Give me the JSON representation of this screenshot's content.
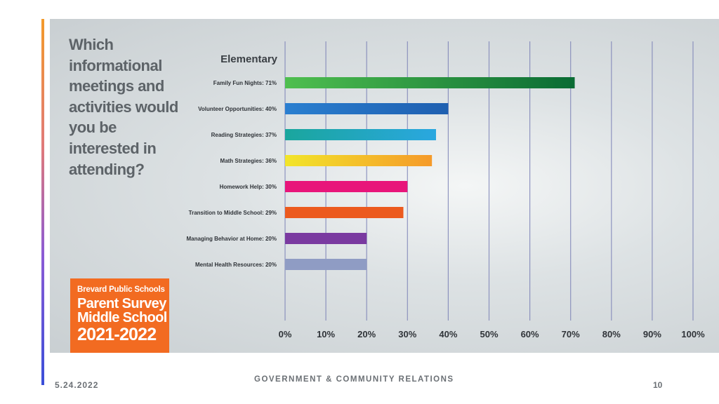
{
  "slide": {
    "question": "Which informational meetings and activities would you be interested in attending?",
    "badge": {
      "line1": "Brevard Public Schools",
      "line2": "Parent Survey",
      "line3": "Middle School",
      "year": "2021-2022"
    },
    "footer": {
      "date": "5.24.2022",
      "center": "GOVERNMENT & COMMUNITY RELATIONS",
      "page": "10"
    }
  },
  "chart_data": {
    "type": "bar",
    "orientation": "horizontal",
    "title": "Elementary",
    "categories": [
      "Family Fun Nights: 71%",
      "Volunteer Opportunities: 40%",
      "Reading Strategies: 37%",
      "Math Strategies: 36%",
      "Homework Help: 30%",
      "Transition to Middle School: 29%",
      "Managing Behavior at Home: 20%",
      "Mental Health Resources: 20%"
    ],
    "values": [
      71,
      40,
      37,
      36,
      30,
      29,
      20,
      20
    ],
    "xlim": [
      0,
      100
    ],
    "xticks": [
      "0%",
      "10%",
      "20%",
      "30%",
      "40%",
      "50%",
      "60%",
      "70%",
      "80%",
      "90%",
      "100%"
    ],
    "grid": true,
    "colors": [
      [
        "#4fbf4f",
        "#0a6b34"
      ],
      [
        "#2a7fd0",
        "#1f5fb0"
      ],
      [
        "#1aa69d",
        "#2aa7e0"
      ],
      [
        "#f2e52a",
        "#f59a2a"
      ],
      [
        "#e8157a",
        "#e8157a"
      ],
      [
        "#ec5a1e",
        "#ec5a1e"
      ],
      [
        "#7a3aa0",
        "#7a3aa0"
      ],
      [
        "#8f9cc4",
        "#8f9cc4"
      ]
    ]
  }
}
